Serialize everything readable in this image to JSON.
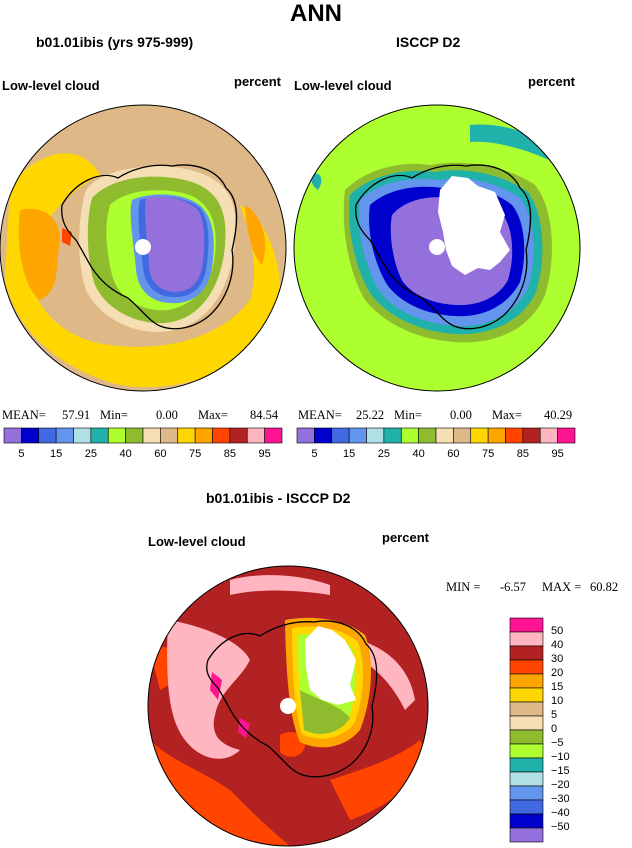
{
  "page_title": "ANN",
  "panels": [
    {
      "title": "b01.01ibis (yrs 975-999)",
      "variable": "Low-level cloud",
      "units": "percent",
      "mean_label": "MEAN=",
      "mean": "57.91",
      "min_label": "Min=",
      "min": "0.00",
      "max_label": "Max=",
      "max": "84.54"
    },
    {
      "title": "ISCCP D2",
      "variable": "Low-level cloud",
      "units": "percent",
      "mean_label": "MEAN=",
      "mean": "25.22",
      "min_label": "Min=",
      "min": "0.00",
      "max_label": "Max=",
      "max": "40.29"
    }
  ],
  "diff_panel": {
    "title": "b01.01ibis - ISCCP D2",
    "variable": "Low-level cloud",
    "units": "percent",
    "min_label": "MIN =",
    "min": "-6.57",
    "max_label": "MAX =",
    "max": "60.82"
  },
  "chart_data": [
    {
      "type": "heatmap",
      "projection": "south-polar-stereographic",
      "title": "b01.01ibis (yrs 975-999)",
      "variable": "Low-level cloud",
      "units": "percent",
      "mean": 57.91,
      "min": 0.0,
      "max": 84.54,
      "color_levels": [
        5,
        10,
        15,
        20,
        25,
        30,
        40,
        50,
        60,
        70,
        75,
        80,
        85,
        90,
        95
      ],
      "colorbar_tick_labels": [
        "5",
        "15",
        "25",
        "40",
        "60",
        "75",
        "85",
        "95"
      ]
    },
    {
      "type": "heatmap",
      "projection": "south-polar-stereographic",
      "title": "ISCCP D2",
      "variable": "Low-level cloud",
      "units": "percent",
      "mean": 25.22,
      "min": 0.0,
      "max": 40.29,
      "color_levels": [
        5,
        10,
        15,
        20,
        25,
        30,
        40,
        50,
        60,
        70,
        75,
        80,
        85,
        90,
        95
      ],
      "colorbar_tick_labels": [
        "5",
        "15",
        "25",
        "40",
        "60",
        "75",
        "85",
        "95"
      ]
    },
    {
      "type": "heatmap",
      "projection": "south-polar-stereographic",
      "title": "b01.01ibis - ISCCP D2",
      "variable": "Low-level cloud",
      "units": "percent",
      "min": -6.57,
      "max": 60.82,
      "color_levels": [
        50,
        40,
        30,
        20,
        15,
        10,
        5,
        0,
        -5,
        -10,
        -15,
        -20,
        -30,
        -40,
        -50
      ],
      "colorbar_tick_labels": [
        "50",
        "40",
        "30",
        "20",
        "15",
        "10",
        "5",
        "0",
        "−5",
        "−10",
        "−15",
        "−20",
        "−30",
        "−40",
        "−50"
      ]
    }
  ],
  "palette": {
    "abs": [
      "#9370db",
      "#0000cd",
      "#4169e1",
      "#6495ed",
      "#b0e0e6",
      "#20b2aa",
      "#adff2f",
      "#8fbc2f",
      "#f5deb3",
      "#deb887",
      "#ffd700",
      "#ffa500",
      "#ff4500",
      "#b22222",
      "#ffb6c1",
      "#ff1493"
    ],
    "diff": [
      "#ff1493",
      "#ffb6c1",
      "#b22222",
      "#ff4500",
      "#ffa500",
      "#ffd700",
      "#deb887",
      "#f5deb3",
      "#8fbc2f",
      "#adff2f",
      "#20b2aa",
      "#b0e0e6",
      "#6495ed",
      "#4169e1",
      "#0000cd",
      "#9370db"
    ],
    "coast": "#000000",
    "no_data": "#ffffff"
  }
}
